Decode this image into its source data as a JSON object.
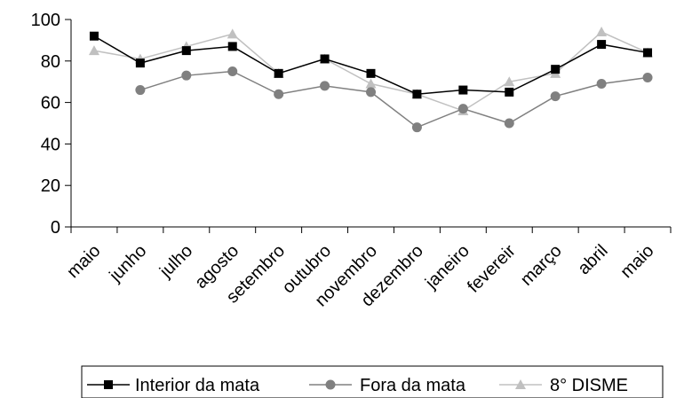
{
  "chart_data": {
    "type": "line",
    "categories": [
      "maio",
      "junho",
      "julho",
      "agosto",
      "setembro",
      "outubro",
      "novembro",
      "dezembro",
      "janeiro",
      "fevereir",
      "março",
      "abril",
      "maio"
    ],
    "series": [
      {
        "name": "Interior da mata",
        "color": "#000000",
        "marker": "square",
        "values": [
          92,
          79,
          85,
          87,
          74,
          81,
          74,
          64,
          66,
          65,
          76,
          88,
          84
        ]
      },
      {
        "name": "Fora da mata",
        "color": "#808080",
        "marker": "circle",
        "values": [
          null,
          66,
          73,
          75,
          64,
          68,
          65,
          48,
          57,
          50,
          63,
          69,
          72
        ]
      },
      {
        "name": "8° DISME",
        "color": "#c0c0c0",
        "marker": "triangle",
        "values": [
          85,
          81,
          87,
          93,
          74,
          81,
          69,
          64,
          56,
          70,
          74,
          94,
          84
        ]
      }
    ],
    "ylim": [
      0,
      100
    ],
    "yticks": [
      "0",
      "20",
      "40",
      "60",
      "80",
      "100"
    ],
    "legend_position": "bottom",
    "grid": false
  }
}
